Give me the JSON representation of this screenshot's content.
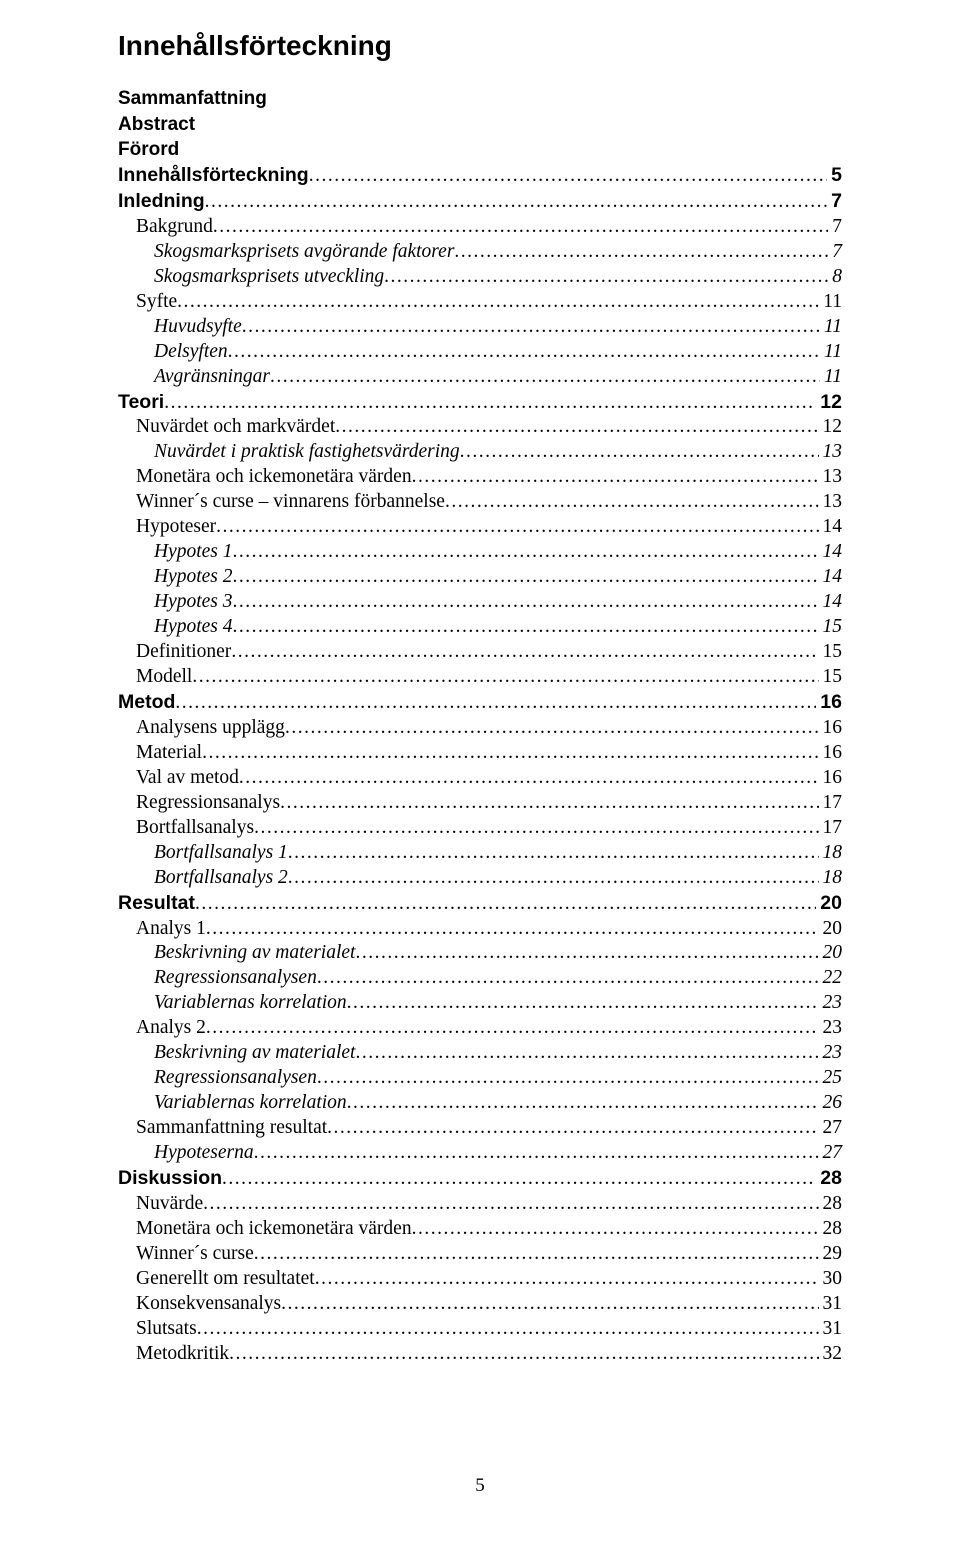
{
  "title": "Innehållsförteckning",
  "front_matter": [
    "Sammanfattning",
    "Abstract",
    "Förord"
  ],
  "toc": [
    {
      "label": "Innehållsförteckning",
      "page": "5",
      "level": 0
    },
    {
      "label": "Inledning",
      "page": "7",
      "level": 0
    },
    {
      "label": "Bakgrund",
      "page": "7",
      "level": 1
    },
    {
      "label": "Skogsmarksprisets avgörande faktorer",
      "page": "7",
      "level": 2
    },
    {
      "label": "Skogsmarksprisets utveckling",
      "page": "8",
      "level": 2
    },
    {
      "label": "Syfte",
      "page": "11",
      "level": 1
    },
    {
      "label": "Huvudsyfte",
      "page": "11",
      "level": 2
    },
    {
      "label": "Delsyften",
      "page": "11",
      "level": 2
    },
    {
      "label": "Avgränsningar",
      "page": "11",
      "level": 2
    },
    {
      "label": "Teori",
      "page": "12",
      "level": 0
    },
    {
      "label": "Nuvärdet och markvärdet",
      "page": "12",
      "level": 1
    },
    {
      "label": "Nuvärdet i praktisk fastighetsvärdering",
      "page": "13",
      "level": 2
    },
    {
      "label": "Monetära och ickemonetära värden",
      "page": "13",
      "level": 1
    },
    {
      "label": "Winner´s curse – vinnarens förbannelse",
      "page": "13",
      "level": 1
    },
    {
      "label": "Hypoteser",
      "page": "14",
      "level": 1
    },
    {
      "label": "Hypotes 1",
      "page": "14",
      "level": 2
    },
    {
      "label": "Hypotes 2",
      "page": "14",
      "level": 2
    },
    {
      "label": "Hypotes 3",
      "page": "14",
      "level": 2
    },
    {
      "label": "Hypotes 4",
      "page": "15",
      "level": 2
    },
    {
      "label": "Definitioner",
      "page": "15",
      "level": 1
    },
    {
      "label": "Modell",
      "page": "15",
      "level": 1
    },
    {
      "label": "Metod",
      "page": "16",
      "level": 0
    },
    {
      "label": "Analysens upplägg",
      "page": "16",
      "level": 1
    },
    {
      "label": "Material",
      "page": "16",
      "level": 1
    },
    {
      "label": "Val av metod",
      "page": "16",
      "level": 1
    },
    {
      "label": "Regressionsanalys",
      "page": "17",
      "level": 1
    },
    {
      "label": "Bortfallsanalys",
      "page": "17",
      "level": 1
    },
    {
      "label": "Bortfallsanalys 1",
      "page": "18",
      "level": 2
    },
    {
      "label": "Bortfallsanalys 2",
      "page": "18",
      "level": 2
    },
    {
      "label": "Resultat",
      "page": "20",
      "level": 0
    },
    {
      "label": "Analys 1",
      "page": "20",
      "level": 1
    },
    {
      "label": "Beskrivning av materialet",
      "page": "20",
      "level": 2
    },
    {
      "label": "Regressionsanalysen",
      "page": "22",
      "level": 2
    },
    {
      "label": "Variablernas korrelation",
      "page": "23",
      "level": 2
    },
    {
      "label": "Analys 2",
      "page": "23",
      "level": 1
    },
    {
      "label": "Beskrivning av materialet",
      "page": "23",
      "level": 2
    },
    {
      "label": "Regressionsanalysen",
      "page": "25",
      "level": 2
    },
    {
      "label": "Variablernas korrelation",
      "page": "26",
      "level": 2
    },
    {
      "label": "Sammanfattning resultat",
      "page": "27",
      "level": 1
    },
    {
      "label": "Hypoteserna",
      "page": "27",
      "level": 2
    },
    {
      "label": "Diskussion",
      "page": "28",
      "level": 0
    },
    {
      "label": "Nuvärde",
      "page": "28",
      "level": 1
    },
    {
      "label": "Monetära och ickemonetära värden",
      "page": "28",
      "level": 1
    },
    {
      "label": "Winner´s curse",
      "page": "29",
      "level": 1
    },
    {
      "label": "Generellt om resultatet",
      "page": "30",
      "level": 1
    },
    {
      "label": "Konsekvensanalys",
      "page": "31",
      "level": 1
    },
    {
      "label": "Slutsats",
      "page": "31",
      "level": 1
    },
    {
      "label": "Metodkritik",
      "page": "32",
      "level": 1
    }
  ],
  "page_number": "5",
  "colors": {
    "text": "#000000",
    "background": "#ffffff"
  },
  "typography": {
    "title_font": "Arial",
    "title_size_pt": 21,
    "body_font": "Times New Roman",
    "body_size_pt": 14.5
  }
}
